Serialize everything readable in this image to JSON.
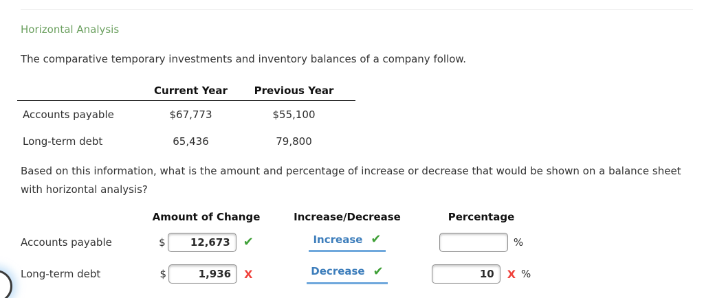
{
  "page": {
    "title": "Horizontal Analysis",
    "intro": "The comparative temporary investments and inventory balances of a company follow.",
    "question": "Based on this information, what is the amount and percentage of increase or decrease that would be shown on a balance sheet with horizontal analysis?"
  },
  "colors": {
    "title_green": "#6ba05f",
    "link_blue": "#3c7dbb",
    "underline_blue": "#6fa8dc",
    "check_green": "#3fa037",
    "cross_red": "#ef413b"
  },
  "comparative_table": {
    "columns": [
      "Current Year",
      "Previous Year"
    ],
    "rows": [
      {
        "label": "Accounts payable",
        "current": "$67,773",
        "previous": "$55,100"
      },
      {
        "label": "Long-term debt",
        "current": "65,436",
        "previous": "79,800"
      }
    ]
  },
  "analysis_table": {
    "columns": [
      "Amount of Change",
      "Increase/Decrease",
      "Percentage"
    ],
    "rows": [
      {
        "label": "Accounts payable",
        "currency_symbol": "$",
        "amount_value": "12,673",
        "amount_mark": "✔",
        "direction_label": "Increase",
        "direction_mark": "✔",
        "percent_value": "",
        "percent_mark": "",
        "percent_symbol": "%"
      },
      {
        "label": "Long-term debt",
        "currency_symbol": "$",
        "amount_value": "1,936",
        "amount_mark": "X",
        "direction_label": "Decrease",
        "direction_mark": "✔",
        "percent_value": "10",
        "percent_mark": "X",
        "percent_symbol": "%"
      }
    ]
  }
}
